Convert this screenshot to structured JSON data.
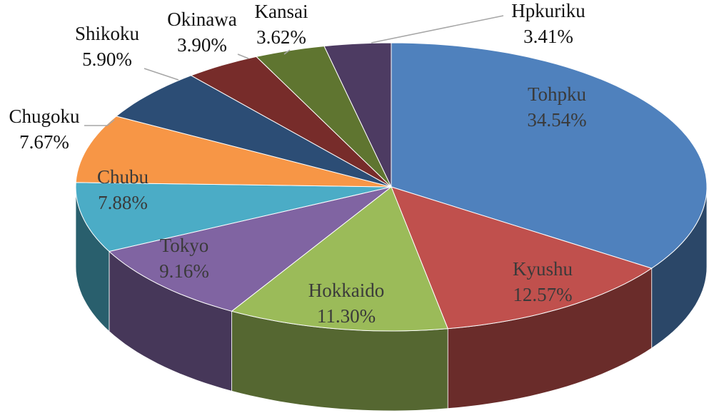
{
  "chart_data": {
    "type": "pie3d",
    "categories": [
      "Tohpku",
      "Kyushu",
      "Hokkaido",
      "Tokyo",
      "Chubu",
      "Chugoku",
      "Shikoku",
      "Okinawa",
      "Kansai",
      "Hpkuriku"
    ],
    "values": [
      34.54,
      12.57,
      11.3,
      9.16,
      7.88,
      7.67,
      5.9,
      3.9,
      3.62,
      3.41
    ],
    "value_labels": [
      "34.54%",
      "12.57%",
      "11.30%",
      "9.16%",
      "7.88%",
      "7.67%",
      "5.90%",
      "3.90%",
      "3.62%",
      "3.41%"
    ],
    "colors": [
      "#4f81bd",
      "#c0504d",
      "#9bbb59",
      "#8064a2",
      "#4bacc6",
      "#f79646",
      "#2c4d75",
      "#772c2a",
      "#5f7530",
      "#4d3b62"
    ]
  }
}
